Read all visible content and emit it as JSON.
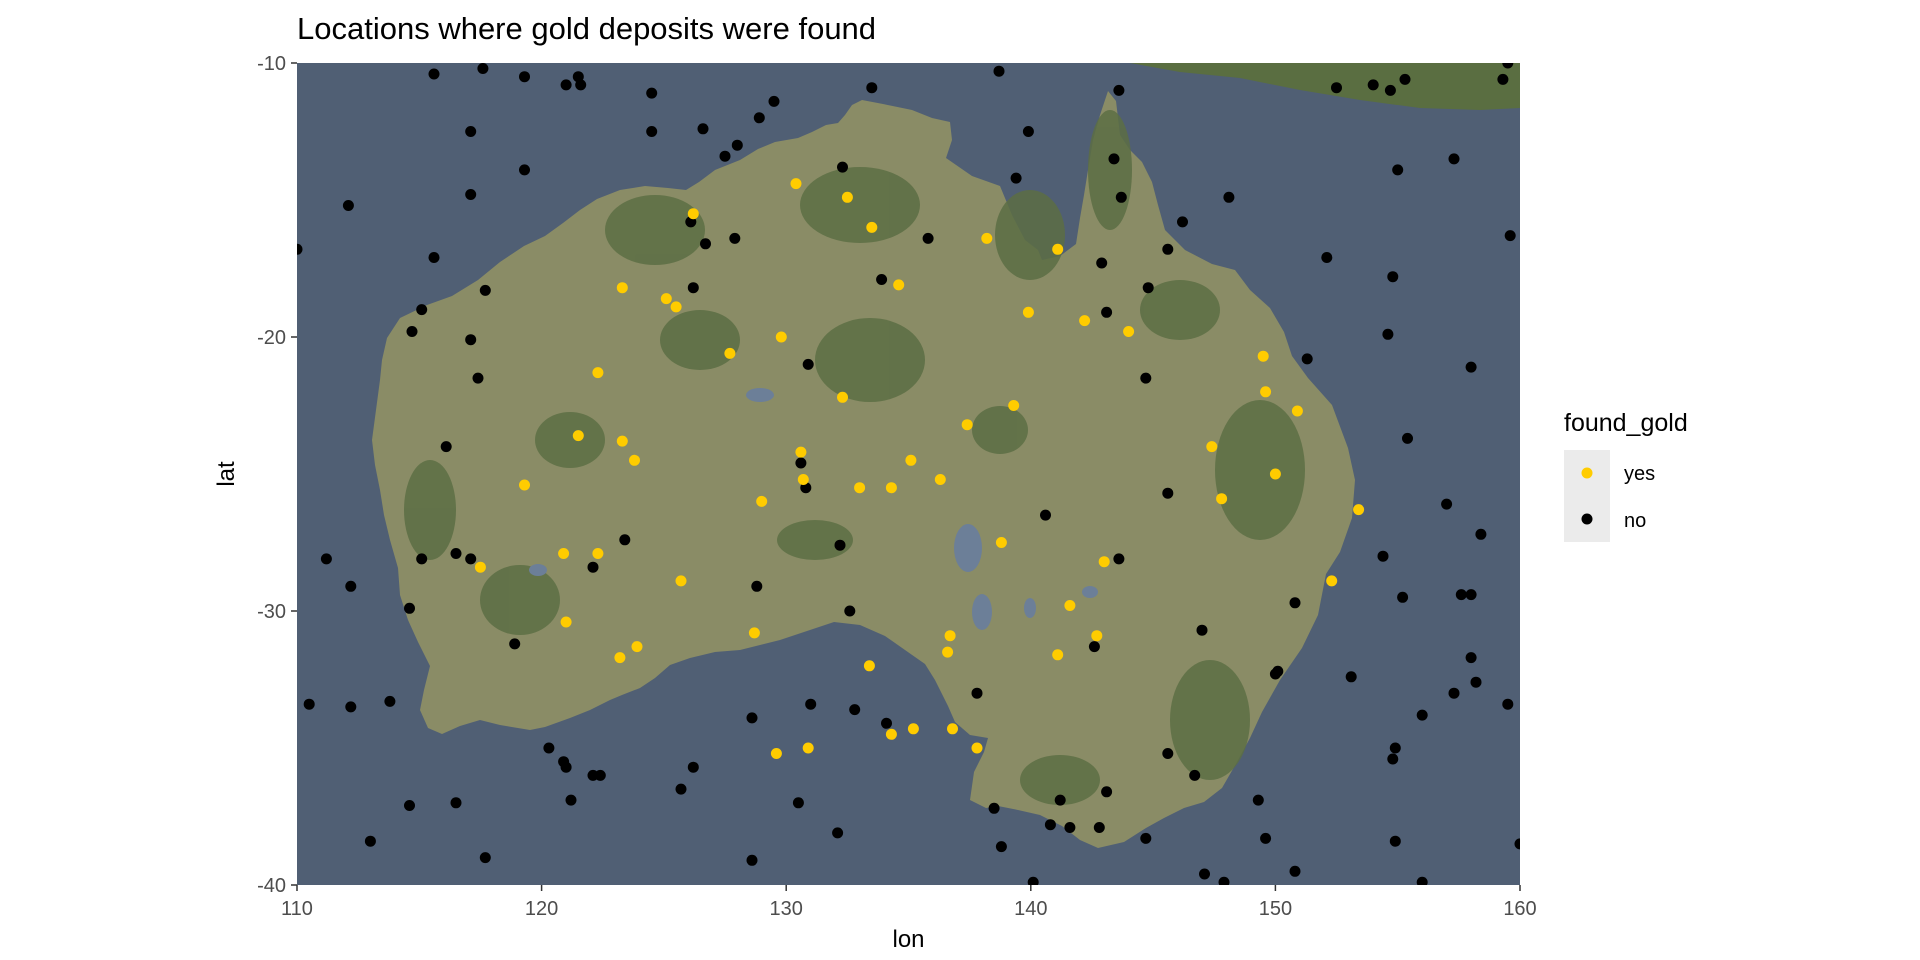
{
  "chart_data": {
    "type": "scatter",
    "title": "Locations where gold deposits were found",
    "xlabel": "lon",
    "ylabel": "lat",
    "xlim": [
      110,
      160
    ],
    "ylim": [
      -40,
      -10
    ],
    "x_ticks": [
      "110",
      "120",
      "130",
      "140",
      "150",
      "160"
    ],
    "y_ticks": [
      "-10",
      "-20",
      "-30",
      "-40"
    ],
    "x_tick_values": [
      110,
      120,
      130,
      140,
      150,
      160
    ],
    "y_tick_values": [
      -10,
      -20,
      -30,
      -40
    ],
    "background": "satellite map of Australia",
    "grid": false,
    "legend": {
      "title": "found_gold",
      "position": "right",
      "entries": [
        {
          "label": "yes",
          "color": "#FFCC00"
        },
        {
          "label": "no",
          "color": "#000000"
        }
      ]
    },
    "colors": {
      "ocean": "#505F74",
      "land": "#8A8C66",
      "vegetation": "#5A6E41",
      "lakes": "#6C7F98",
      "yes": "#FFCC00",
      "no": "#000000",
      "legend_key_bg": "#EBEBEB"
    },
    "series": [
      {
        "name": "yes",
        "color": "#FFCC00",
        "points": [
          [
            130.4,
            -14.4
          ],
          [
            132.5,
            -14.9
          ],
          [
            133.5,
            -16.0
          ],
          [
            138.2,
            -16.4
          ],
          [
            141.1,
            -16.8
          ],
          [
            126.2,
            -15.5
          ],
          [
            123.3,
            -18.2
          ],
          [
            125.1,
            -18.6
          ],
          [
            125.5,
            -18.9
          ],
          [
            134.6,
            -18.1
          ],
          [
            129.8,
            -20.0
          ],
          [
            127.7,
            -20.6
          ],
          [
            139.9,
            -19.1
          ],
          [
            142.2,
            -19.4
          ],
          [
            144.0,
            -19.8
          ],
          [
            122.3,
            -21.3
          ],
          [
            132.3,
            -22.2
          ],
          [
            121.5,
            -23.6
          ],
          [
            123.3,
            -23.8
          ],
          [
            123.8,
            -24.5
          ],
          [
            137.4,
            -23.2
          ],
          [
            139.3,
            -22.5
          ],
          [
            149.5,
            -20.7
          ],
          [
            149.6,
            -22.0
          ],
          [
            150.9,
            -22.7
          ],
          [
            147.4,
            -24.0
          ],
          [
            150.0,
            -25.0
          ],
          [
            147.8,
            -25.9
          ],
          [
            119.3,
            -25.4
          ],
          [
            130.6,
            -24.2
          ],
          [
            130.7,
            -25.2
          ],
          [
            133.0,
            -25.5
          ],
          [
            134.3,
            -25.5
          ],
          [
            135.1,
            -24.5
          ],
          [
            136.3,
            -25.2
          ],
          [
            129.0,
            -26.0
          ],
          [
            153.4,
            -26.3
          ],
          [
            117.5,
            -28.4
          ],
          [
            120.9,
            -27.9
          ],
          [
            122.3,
            -27.9
          ],
          [
            138.8,
            -27.5
          ],
          [
            143.0,
            -28.2
          ],
          [
            152.3,
            -28.9
          ],
          [
            125.7,
            -28.9
          ],
          [
            141.6,
            -29.8
          ],
          [
            121.0,
            -30.4
          ],
          [
            128.7,
            -30.8
          ],
          [
            136.7,
            -30.9
          ],
          [
            142.7,
            -30.9
          ],
          [
            123.2,
            -31.7
          ],
          [
            123.9,
            -31.3
          ],
          [
            136.6,
            -31.5
          ],
          [
            141.1,
            -31.6
          ],
          [
            133.4,
            -32.0
          ],
          [
            135.2,
            -34.3
          ],
          [
            136.8,
            -34.3
          ],
          [
            134.3,
            -34.5
          ],
          [
            137.8,
            -35.0
          ],
          [
            129.6,
            -35.2
          ],
          [
            130.9,
            -35.0
          ]
        ]
      },
      {
        "name": "no",
        "color": "#000000",
        "points": [
          [
            115.6,
            -10.4
          ],
          [
            117.6,
            -10.2
          ],
          [
            119.3,
            -10.5
          ],
          [
            121.0,
            -10.8
          ],
          [
            121.5,
            -10.5
          ],
          [
            121.6,
            -10.8
          ],
          [
            124.5,
            -11.1
          ],
          [
            129.5,
            -11.4
          ],
          [
            128.9,
            -12.0
          ],
          [
            126.6,
            -12.4
          ],
          [
            124.5,
            -12.5
          ],
          [
            117.1,
            -12.5
          ],
          [
            133.5,
            -10.9
          ],
          [
            138.7,
            -10.3
          ],
          [
            139.9,
            -12.5
          ],
          [
            143.6,
            -11.0
          ],
          [
            152.5,
            -10.9
          ],
          [
            154.0,
            -10.8
          ],
          [
            154.7,
            -11.0
          ],
          [
            155.3,
            -10.6
          ],
          [
            159.3,
            -10.6
          ],
          [
            159.5,
            -10.0
          ],
          [
            127.5,
            -13.4
          ],
          [
            128.0,
            -13.0
          ],
          [
            132.3,
            -13.8
          ],
          [
            139.4,
            -14.2
          ],
          [
            143.4,
            -13.5
          ],
          [
            143.7,
            -14.9
          ],
          [
            148.1,
            -14.9
          ],
          [
            155.0,
            -13.9
          ],
          [
            157.3,
            -13.5
          ],
          [
            119.3,
            -13.9
          ],
          [
            117.1,
            -14.8
          ],
          [
            112.1,
            -15.2
          ],
          [
            126.1,
            -15.8
          ],
          [
            126.7,
            -16.6
          ],
          [
            127.9,
            -16.4
          ],
          [
            135.8,
            -16.4
          ],
          [
            146.2,
            -15.8
          ],
          [
            145.6,
            -16.8
          ],
          [
            142.9,
            -17.3
          ],
          [
            110.0,
            -16.8
          ],
          [
            115.6,
            -17.1
          ],
          [
            152.1,
            -17.1
          ],
          [
            159.6,
            -16.3
          ],
          [
            154.8,
            -17.8
          ],
          [
            133.9,
            -17.9
          ],
          [
            144.8,
            -18.2
          ],
          [
            126.2,
            -18.2
          ],
          [
            117.7,
            -18.3
          ],
          [
            115.1,
            -19.0
          ],
          [
            114.7,
            -19.8
          ],
          [
            143.1,
            -19.1
          ],
          [
            154.6,
            -19.9
          ],
          [
            117.1,
            -20.1
          ],
          [
            130.9,
            -21.0
          ],
          [
            151.3,
            -20.8
          ],
          [
            158.0,
            -21.1
          ],
          [
            117.4,
            -21.5
          ],
          [
            144.7,
            -21.5
          ],
          [
            116.1,
            -24.0
          ],
          [
            155.4,
            -23.7
          ],
          [
            130.6,
            -24.6
          ],
          [
            130.8,
            -25.5
          ],
          [
            145.6,
            -25.7
          ],
          [
            140.6,
            -26.5
          ],
          [
            157.0,
            -26.1
          ],
          [
            158.4,
            -27.2
          ],
          [
            123.4,
            -27.4
          ],
          [
            132.2,
            -27.6
          ],
          [
            111.2,
            -28.1
          ],
          [
            115.1,
            -28.1
          ],
          [
            116.5,
            -27.9
          ],
          [
            117.1,
            -28.1
          ],
          [
            122.1,
            -28.4
          ],
          [
            143.6,
            -28.1
          ],
          [
            154.4,
            -28.0
          ],
          [
            112.2,
            -29.1
          ],
          [
            114.6,
            -29.9
          ],
          [
            128.8,
            -29.1
          ],
          [
            132.6,
            -30.0
          ],
          [
            150.8,
            -29.7
          ],
          [
            155.2,
            -29.5
          ],
          [
            157.6,
            -29.4
          ],
          [
            158.0,
            -29.4
          ],
          [
            118.9,
            -31.2
          ],
          [
            142.6,
            -31.3
          ],
          [
            147.0,
            -30.7
          ],
          [
            150.0,
            -32.3
          ],
          [
            150.1,
            -32.2
          ],
          [
            153.1,
            -32.4
          ],
          [
            158.0,
            -31.7
          ],
          [
            158.2,
            -32.6
          ],
          [
            157.3,
            -33.0
          ],
          [
            110.5,
            -33.4
          ],
          [
            112.2,
            -33.5
          ],
          [
            113.8,
            -33.3
          ],
          [
            131.0,
            -33.4
          ],
          [
            132.8,
            -33.6
          ],
          [
            128.6,
            -33.9
          ],
          [
            137.8,
            -33.0
          ],
          [
            134.1,
            -34.1
          ],
          [
            156.0,
            -33.8
          ],
          [
            159.5,
            -33.4
          ],
          [
            120.3,
            -35.0
          ],
          [
            120.9,
            -35.5
          ],
          [
            121.0,
            -35.7
          ],
          [
            122.1,
            -36.0
          ],
          [
            122.4,
            -36.0
          ],
          [
            125.7,
            -36.5
          ],
          [
            126.2,
            -35.7
          ],
          [
            145.6,
            -35.2
          ],
          [
            146.7,
            -36.0
          ],
          [
            154.8,
            -35.4
          ],
          [
            154.9,
            -35.0
          ],
          [
            114.6,
            -37.1
          ],
          [
            116.5,
            -37.0
          ],
          [
            121.2,
            -36.9
          ],
          [
            130.5,
            -37.0
          ],
          [
            138.5,
            -37.2
          ],
          [
            141.2,
            -36.9
          ],
          [
            143.1,
            -36.6
          ],
          [
            149.3,
            -36.9
          ],
          [
            113.0,
            -38.4
          ],
          [
            132.1,
            -38.1
          ],
          [
            140.8,
            -37.8
          ],
          [
            141.6,
            -37.9
          ],
          [
            142.8,
            -37.9
          ],
          [
            144.7,
            -38.3
          ],
          [
            149.6,
            -38.3
          ],
          [
            154.9,
            -38.4
          ],
          [
            117.7,
            -39.0
          ],
          [
            128.6,
            -39.1
          ],
          [
            138.8,
            -38.6
          ],
          [
            140.1,
            -39.9
          ],
          [
            147.1,
            -39.6
          ],
          [
            147.9,
            -39.9
          ],
          [
            150.8,
            -39.5
          ],
          [
            156.0,
            -39.9
          ],
          [
            160.0,
            -38.5
          ]
        ]
      }
    ]
  }
}
